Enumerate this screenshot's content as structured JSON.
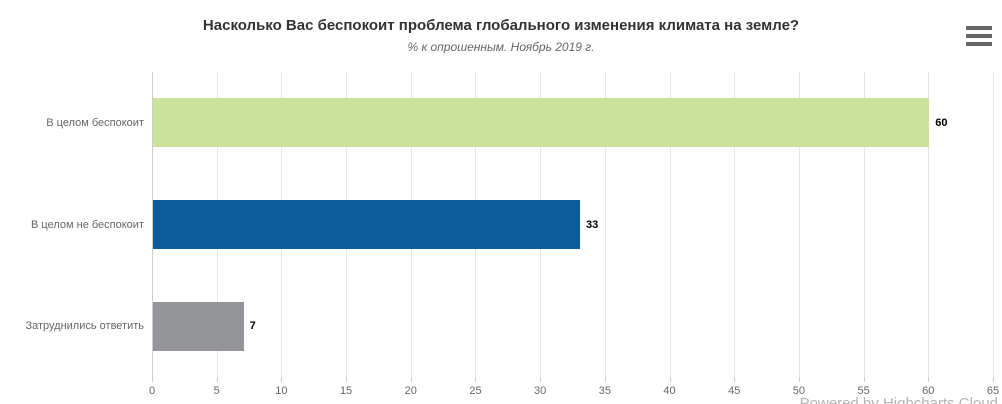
{
  "chart": {
    "credits_label": "Powered by Highcharts Cloud"
  },
  "chart_data": {
    "type": "bar",
    "orientation": "horizontal",
    "title": "Насколько Вас беспокоит проблема глобального изменения климата на земле?",
    "subtitle": "% к опрошенным. Ноябрь 2019 г.",
    "categories": [
      "В целом беспокоит",
      "В целом не беспокоит",
      "Затруднились ответить"
    ],
    "values": [
      60,
      33,
      7
    ],
    "bar_colors": [
      "#cbe29b",
      "#0d5d9d",
      "#939598"
    ],
    "xlim": [
      0,
      65
    ],
    "tick_interval": 5,
    "x_ticks": [
      0,
      5,
      10,
      15,
      20,
      25,
      30,
      35,
      40,
      45,
      50,
      55,
      60,
      65
    ],
    "grid": true,
    "legend": "none",
    "data_labels": true,
    "colors": {
      "background": "#ffffff",
      "grid": "#e6e6e6",
      "axis_line": "#cccccc",
      "title": "#333333",
      "subtitle": "#666666",
      "tick_label": "#666666",
      "category_label": "#666666",
      "value_label": "#000000",
      "credits": "#b3b3b3",
      "menu_icon": "#666666"
    }
  }
}
